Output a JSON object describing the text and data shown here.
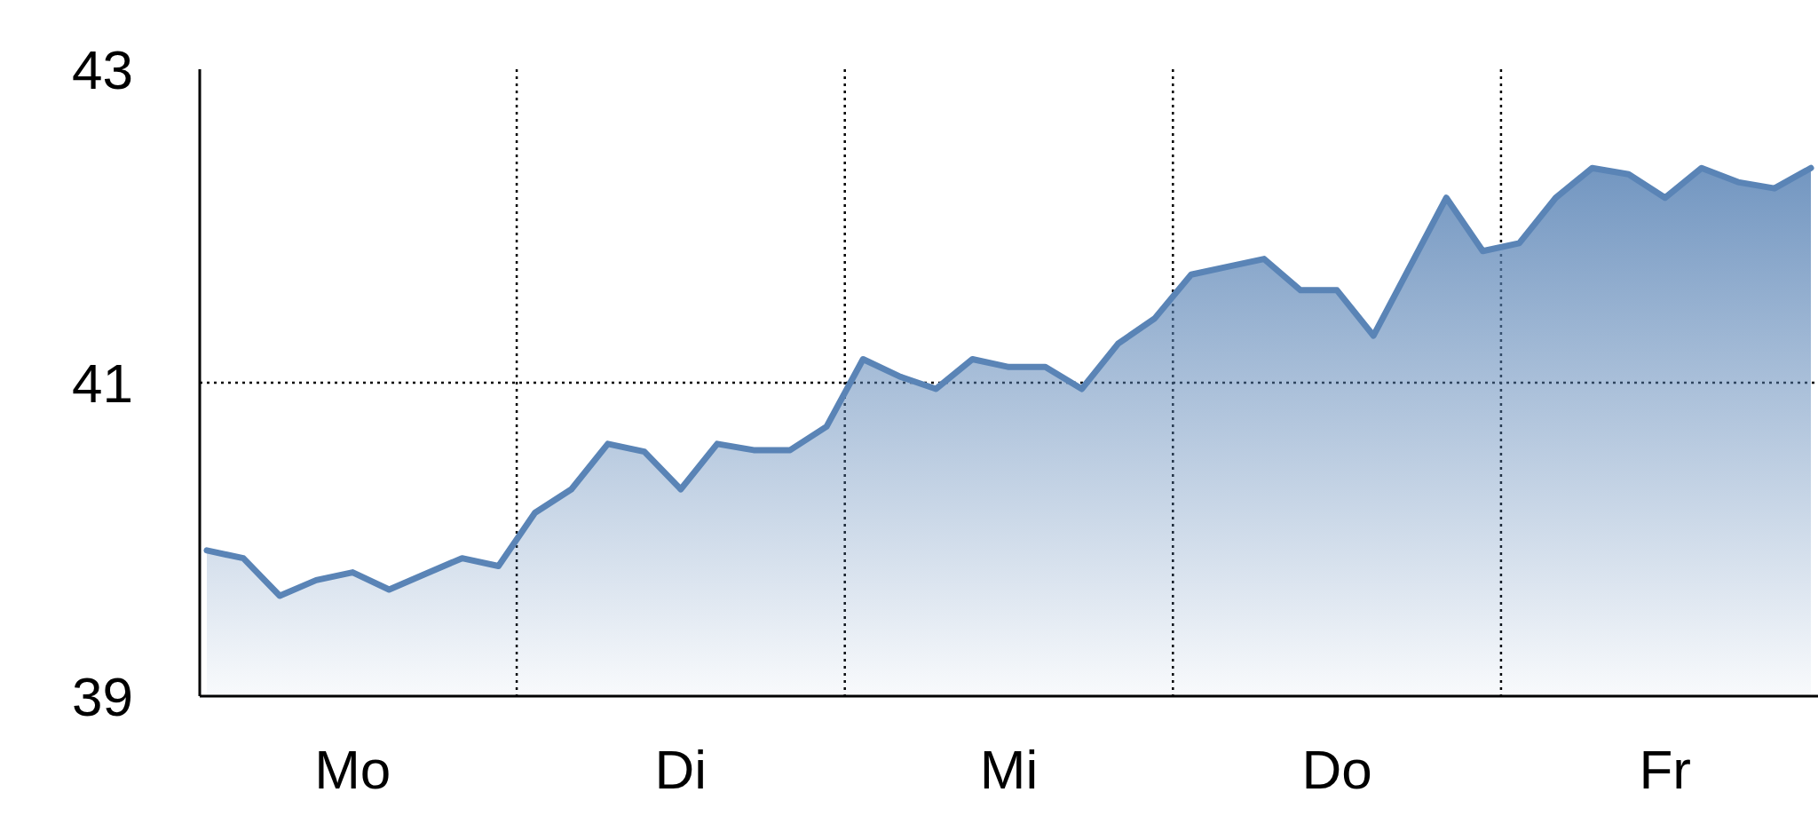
{
  "chart_data": {
    "type": "area",
    "categories": [
      null,
      null,
      null,
      null,
      "Mo",
      null,
      null,
      null,
      null,
      null,
      null,
      null,
      null,
      "Di",
      null,
      null,
      null,
      null,
      null,
      null,
      null,
      null,
      "Mi",
      null,
      null,
      null,
      null,
      null,
      null,
      null,
      null,
      "Do",
      null,
      null,
      null,
      null,
      null,
      null,
      null,
      null,
      "Fr",
      null,
      null,
      null,
      null
    ],
    "series": [
      {
        "color": "#5a84b6",
        "values": [
          39.93,
          39.88,
          39.64,
          39.74,
          39.79,
          39.68,
          39.78,
          39.88,
          39.83,
          40.17,
          40.32,
          40.61,
          40.56,
          40.32,
          40.61,
          40.57,
          40.57,
          40.72,
          41.15,
          41.04,
          40.96,
          41.15,
          41.1,
          41.1,
          40.96,
          41.25,
          41.41,
          41.69,
          41.74,
          41.79,
          41.59,
          41.59,
          41.3,
          41.74,
          42.18,
          41.84,
          41.89,
          42.18,
          42.37,
          42.33,
          42.18,
          42.37,
          42.28,
          42.24,
          42.37
        ]
      }
    ],
    "ylim": [
      39,
      43
    ],
    "yticks": [
      39,
      41,
      43
    ],
    "grid": true
  }
}
